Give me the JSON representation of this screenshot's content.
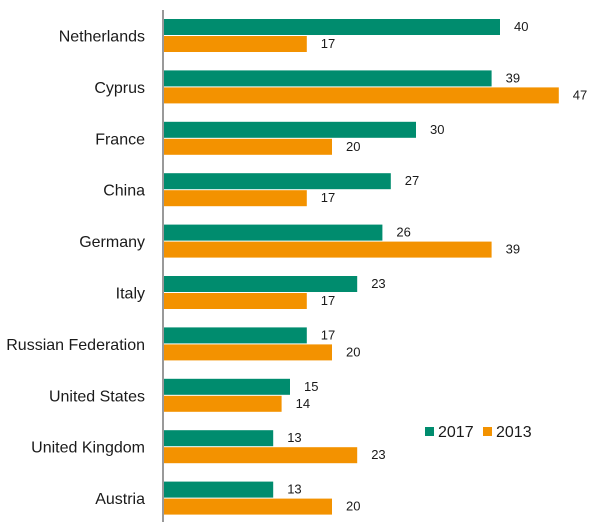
{
  "chart_data": {
    "type": "bar",
    "orientation": "horizontal",
    "categories": [
      "Netherlands",
      "Cyprus",
      "France",
      "China",
      "Germany",
      "Italy",
      "Russian Federation",
      "United States",
      "United Kingdom",
      "Austria"
    ],
    "series": [
      {
        "name": "2017",
        "color": "#008c6e",
        "values": [
          40,
          39,
          30,
          27,
          26,
          23,
          17,
          15,
          13,
          13
        ]
      },
      {
        "name": "2013",
        "color": "#f39200",
        "values": [
          17,
          47,
          20,
          17,
          39,
          17,
          20,
          14,
          23,
          20
        ]
      }
    ],
    "xlim": [
      0,
      50
    ],
    "grid": false,
    "legend_position": "bottom-right",
    "title": "",
    "xlabel": "",
    "ylabel": ""
  }
}
